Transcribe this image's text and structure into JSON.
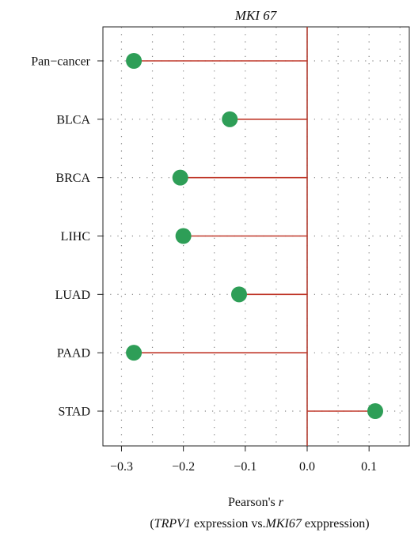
{
  "chart_data": {
    "type": "lollipop",
    "title": "MKI 67",
    "categories": [
      "Pan−cancer",
      "BLCA",
      "BRCA",
      "LIHC",
      "LUAD",
      "PAAD",
      "STAD"
    ],
    "values": [
      -0.28,
      -0.125,
      -0.205,
      -0.2,
      -0.11,
      -0.28,
      0.11
    ],
    "xlim": [
      -0.33,
      0.165
    ],
    "xticks": [
      -0.3,
      -0.2,
      -0.1,
      0.0,
      0.1
    ],
    "xtick_labels": [
      "−0.3",
      "−0.2",
      "−0.1",
      "0.0",
      "0.1"
    ],
    "xlabel": {
      "line1_prefix": "Pearson's ",
      "line1_var": "r",
      "line2_open": "(",
      "line2_gene1": "TRPV1",
      "line2_mid": " expression vs.",
      "line2_gene2": "MKI67",
      "line2_end": " exppression)"
    },
    "reference_line": 0,
    "grid": "dotted",
    "colors": {
      "point": "#2e9e57",
      "stem": "#c0392b",
      "reference": "#b03a2e",
      "grid": "#888888",
      "axis": "#222222"
    }
  }
}
